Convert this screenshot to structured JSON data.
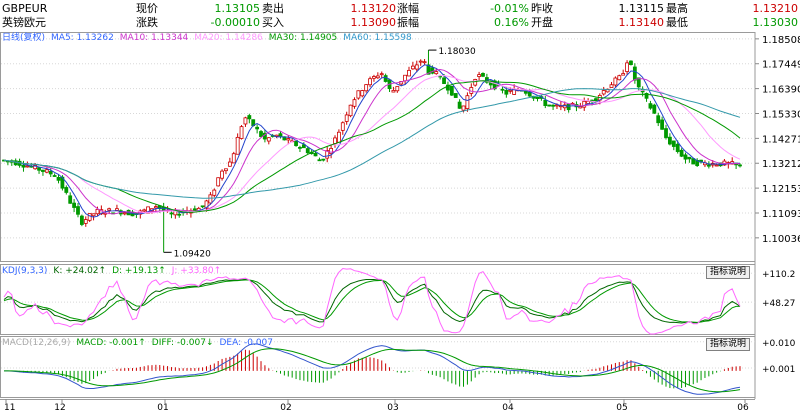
{
  "header": {
    "symbol": "GBPEUR",
    "name": "英镑欧元",
    "fields": [
      {
        "label": "现价",
        "value": "1.13105",
        "value_color": "#009900"
      },
      {
        "label": "卖出",
        "value": "1.13120",
        "value_color": "#cc0000"
      },
      {
        "label": "涨幅",
        "value": "-0.01%",
        "value_color": "#009900"
      },
      {
        "label": "昨收",
        "value": "1.13115",
        "value_color": "#000000"
      },
      {
        "label": "最高",
        "value": "1.13210",
        "value_color": "#cc0000"
      },
      {
        "label": "涨跌",
        "value": "-0.00010",
        "value_color": "#009900"
      },
      {
        "label": "买入",
        "value": "1.13090",
        "value_color": "#cc0000"
      },
      {
        "label": "振幅",
        "value": "0.16%",
        "value_color": "#009900"
      },
      {
        "label": "开盘",
        "value": "1.13140",
        "value_color": "#cc0000"
      },
      {
        "label": "最低",
        "value": "1.13030",
        "value_color": "#009900"
      }
    ]
  },
  "indicators": {
    "main": [
      {
        "text": "日线(复权)",
        "color": "#3366ff"
      },
      {
        "text": "MA5: 1.13262",
        "color": "#3366ff"
      },
      {
        "text": "MA10: 1.13344",
        "color": "#cc33cc"
      },
      {
        "text": "MA20: 1.14286",
        "color": "#ff99ff"
      },
      {
        "text": "MA30: 1.14905",
        "color": "#009900"
      },
      {
        "text": "MA60: 1.15598",
        "color": "#3399cc"
      }
    ],
    "kdj": [
      {
        "text": "KDJ(9,3,3)",
        "color": "#3366ff"
      },
      {
        "text": "K: +24.02↑",
        "color": "#006600"
      },
      {
        "text": "D: +19.13↑",
        "color": "#009900"
      },
      {
        "text": "J: +33.80↑",
        "color": "#ff66ff"
      }
    ],
    "macd": [
      {
        "text": "MACD(12,26,9)",
        "color": "#aaaaaa"
      },
      {
        "text": "MACD: -0.001↑",
        "color": "#009900"
      },
      {
        "text": "DIFF: -0.007↓",
        "color": "#009900"
      },
      {
        "text": "DEA: -0.007",
        "color": "#3366ff"
      }
    ],
    "button_label": "指标说明"
  },
  "colors": {
    "up": "#cc0000",
    "down": "#009900",
    "ma5": "#2244cc",
    "ma10": "#cc33cc",
    "ma20": "#ff99ff",
    "ma30": "#009900",
    "ma60": "#3399aa",
    "k": "#006600",
    "d": "#009900",
    "j": "#ff66ff",
    "diff": "#3355cc",
    "dea": "#009900"
  },
  "chart_data": [
    {
      "type": "candlestick",
      "x_labels": [
        "11",
        "12",
        "01",
        "02",
        "03",
        "04",
        "05",
        "06"
      ],
      "y_ticks": [
        1.10036,
        1.11093,
        1.12153,
        1.13212,
        1.14271,
        1.1533,
        1.1639,
        1.17449,
        1.18508
      ],
      "ylim": [
        1.0905,
        1.188
      ],
      "annotations": [
        {
          "text": "1.18030",
          "value": 1.1803
        },
        {
          "text": "1.09420",
          "value": 1.0942
        }
      ],
      "last_value": 1.13105
    },
    {
      "type": "line",
      "name": "KDJ",
      "y_ticks": [
        "+110.2",
        "+48.27"
      ],
      "ylim": [
        -20,
        130
      ]
    },
    {
      "type": "bar+line",
      "name": "MACD",
      "y_ticks": [
        "+0.010",
        "+0.001"
      ],
      "ylim": [
        -0.009,
        0.012
      ]
    }
  ]
}
